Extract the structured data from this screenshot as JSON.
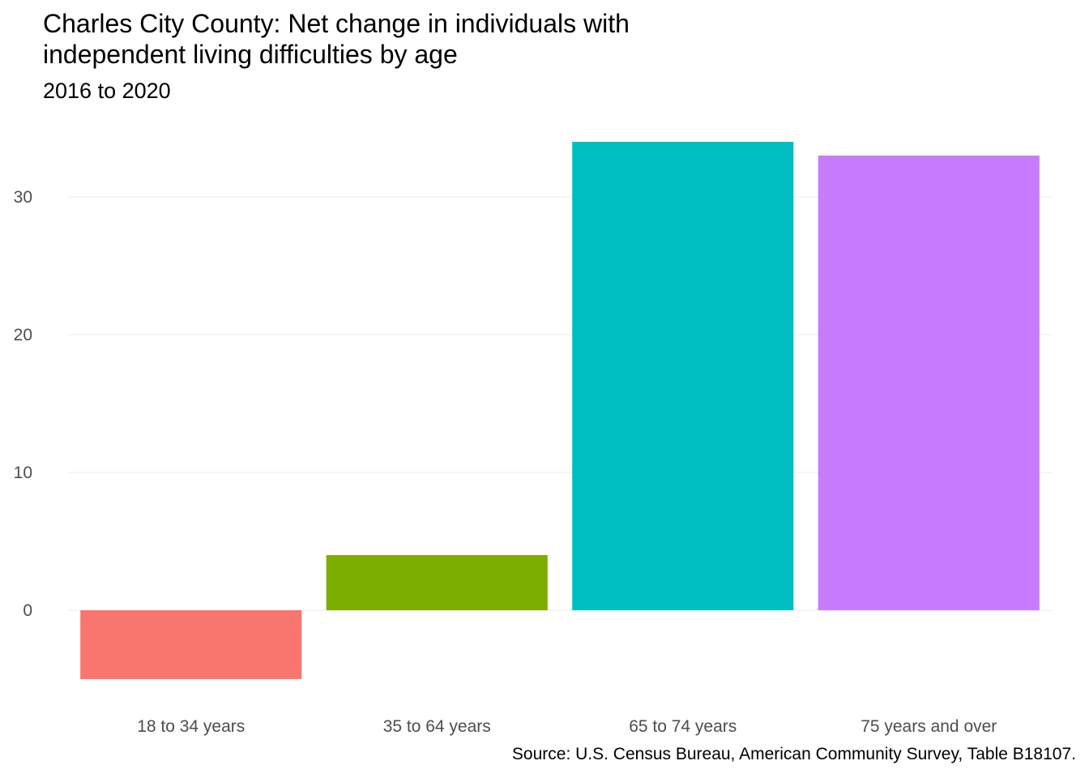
{
  "chart_data": {
    "type": "bar",
    "title": "Charles City County: Net change in individuals with independent living difficulties by age",
    "subtitle": "2016 to 2020",
    "caption": "Source: U.S. Census Bureau, American Community Survey, Table B18107.",
    "xlabel": "",
    "ylabel": "",
    "categories": [
      "18 to 34 years",
      "35 to 64 years",
      "65 to 74 years",
      "75 years and over"
    ],
    "values": [
      -5,
      4,
      34,
      33
    ],
    "colors": [
      "#F8766D",
      "#7CAE00",
      "#00BFC4",
      "#C77CFF"
    ],
    "yticks": [
      0,
      10,
      20,
      30
    ],
    "ylim": [
      -6.0,
      35.0
    ],
    "grid": true,
    "legend": "none"
  }
}
